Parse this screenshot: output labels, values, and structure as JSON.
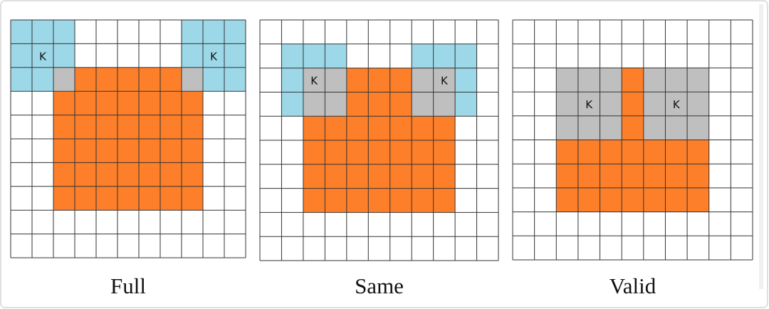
{
  "panels": [
    {
      "caption": "Full",
      "kernel_labels": [
        "K",
        "K"
      ]
    },
    {
      "caption": "Same",
      "kernel_labels": [
        "K",
        "K"
      ]
    },
    {
      "caption": "Valid",
      "kernel_labels": [
        "K",
        "K"
      ]
    }
  ]
}
